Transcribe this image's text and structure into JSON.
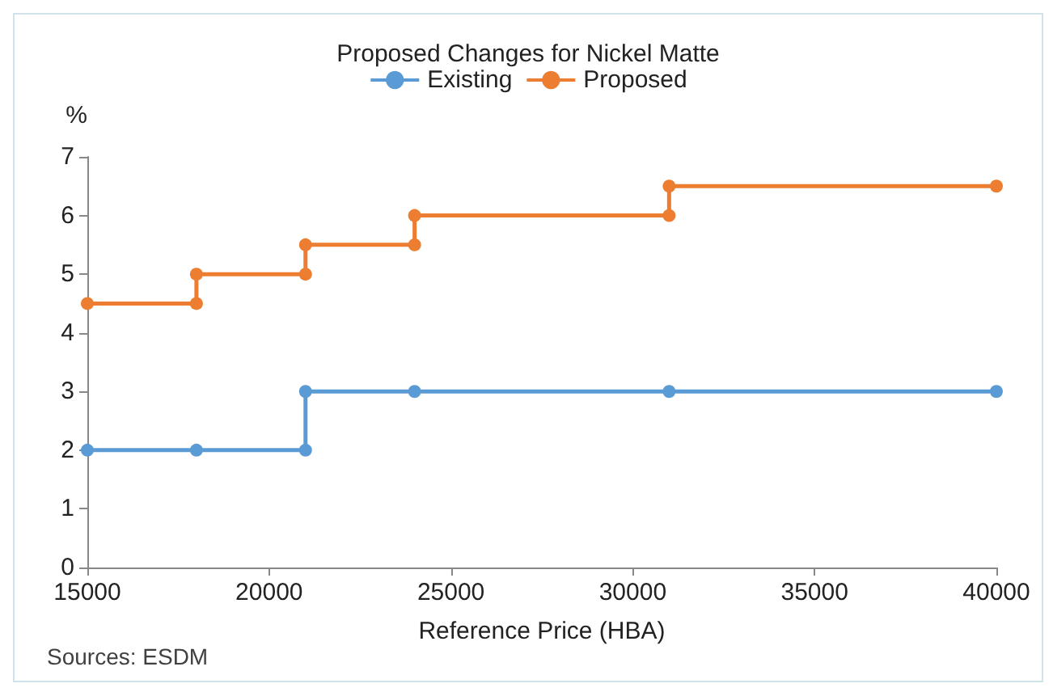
{
  "chart_data": {
    "type": "line",
    "title": "Proposed Changes for Nickel Matte",
    "xlabel": "Reference Price (HBA)",
    "ylabel": "%",
    "annotations": [
      "Sources: ESDM"
    ],
    "series": [
      {
        "name": "Existing",
        "color": "#5b9bd5",
        "x": [
          15000,
          18000,
          21000,
          21000,
          24000,
          31000,
          40000
        ],
        "values": [
          2,
          2,
          2,
          3,
          3,
          3,
          3
        ]
      },
      {
        "name": "Proposed",
        "color": "#ed7d31",
        "x": [
          15000,
          18000,
          18000,
          21000,
          21000,
          24000,
          24000,
          31000,
          31000,
          40000
        ],
        "values": [
          4.5,
          4.5,
          5,
          5,
          5.5,
          5.5,
          6,
          6,
          6.5,
          6.5
        ]
      }
    ],
    "xlim": [
      15000,
      40000
    ],
    "xticks": [
      15000,
      20000,
      25000,
      30000,
      35000,
      40000
    ],
    "ylim": [
      0,
      7
    ],
    "yticks": [
      0,
      1,
      2,
      3,
      4,
      5,
      6,
      7
    ],
    "grid": false,
    "legend": "top",
    "marker": "circle",
    "line_style": "solid"
  }
}
